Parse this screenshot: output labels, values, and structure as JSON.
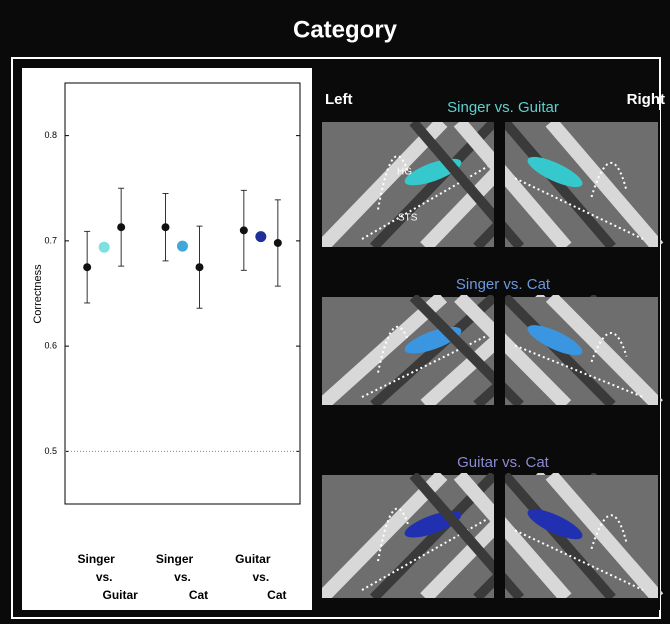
{
  "chart_data": {
    "type": "errorbar",
    "title": "Category",
    "ylabel": "Correctness",
    "categories": [
      "Singer vs. Guitar",
      "Singer vs. Cat",
      "Guitar vs. Cat"
    ],
    "series": [
      {
        "color": "#111111",
        "values": [
          0.675,
          0.713,
          0.71
        ],
        "errors": [
          0.034,
          0.032,
          0.038
        ]
      },
      {
        "colors": [
          "#7fe0e0",
          "#3fa8d8",
          "#1f2f9a"
        ],
        "values": [
          0.694,
          0.695,
          0.704
        ]
      },
      {
        "color": "#111111",
        "values": [
          0.713,
          0.675,
          0.698
        ],
        "errors": [
          0.037,
          0.039,
          0.041
        ]
      }
    ],
    "reference_line": 0.5,
    "ylim": [
      0.45,
      0.85
    ],
    "yticks": [
      0.5,
      0.6,
      0.7,
      0.8
    ]
  },
  "panels": {
    "left_label": "Left",
    "right_label": "Right",
    "rows": [
      {
        "title": "Singer vs. Guitar",
        "color": "#5fd0d0",
        "blob": "#35c8cc"
      },
      {
        "title": "Singer vs. Cat",
        "color": "#6a98e0",
        "blob": "#3a96e0"
      },
      {
        "title": "Guitar vs. Cat",
        "color": "#8a8ad0",
        "blob": "#2030b0"
      }
    ],
    "hg_label": "HG",
    "sts_label": "STS"
  }
}
